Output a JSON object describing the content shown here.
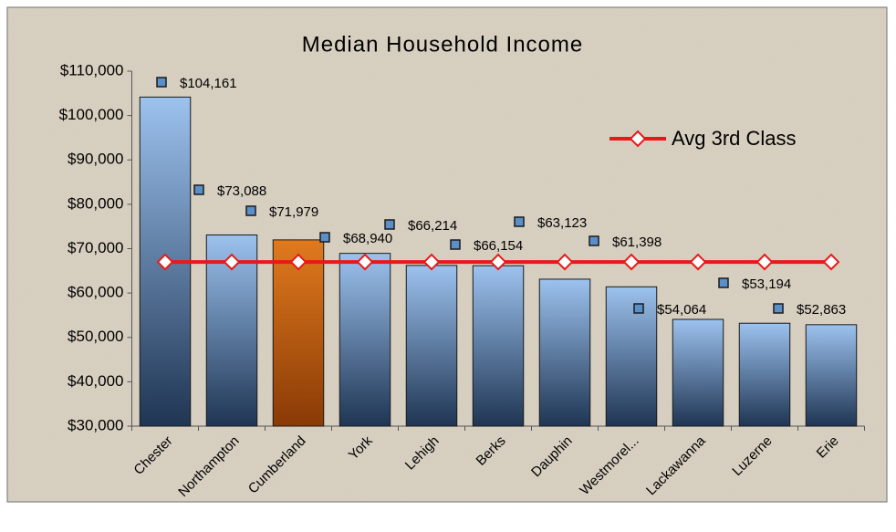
{
  "chart_data": {
    "type": "bar",
    "title": "Median Household Income",
    "categories": [
      "Chester",
      "Northampton",
      "Cumberland",
      "York",
      "Lehigh",
      "Berks",
      "Dauphin",
      "Westmorel...",
      "Lackawanna",
      "Luzerne",
      "Erie"
    ],
    "values": [
      104161,
      73088,
      71979,
      68940,
      66214,
      66154,
      63123,
      61398,
      54064,
      53194,
      52863
    ],
    "value_labels": [
      "$104,161",
      "$73,088",
      "$71,979",
      "$68,940",
      "$66,214",
      "$66,154",
      "$63,123",
      "$61,398",
      "$54,064",
      "$53,194",
      "$52,863"
    ],
    "colors": [
      "#9cc2ee",
      "#9cc2ee",
      "#e07a1e",
      "#9cc2ee",
      "#9cc2ee",
      "#9cc2ee",
      "#9cc2ee",
      "#9cc2ee",
      "#9cc2ee",
      "#9cc2ee",
      "#9cc2ee"
    ],
    "line": {
      "name": "Avg 3rd Class",
      "color": "#e8191a",
      "values": [
        67000,
        67000,
        67000,
        67000,
        67000,
        67000,
        67000,
        67000,
        67000,
        67000,
        67000
      ]
    },
    "ylim": [
      30000,
      110000
    ],
    "yticks": [
      {
        "value": 30000,
        "label": "$30,000"
      },
      {
        "value": 40000,
        "label": "$40,000"
      },
      {
        "value": 50000,
        "label": "$50,000"
      },
      {
        "value": 60000,
        "label": "$60,000"
      },
      {
        "value": 70000,
        "label": "$70,000"
      },
      {
        "value": 80000,
        "label": "$80,000"
      },
      {
        "value": 90000,
        "label": "$90,000"
      },
      {
        "value": 100000,
        "label": "$100,000"
      },
      {
        "value": 110000,
        "label": "$110,000"
      }
    ],
    "legend": "top-right"
  }
}
